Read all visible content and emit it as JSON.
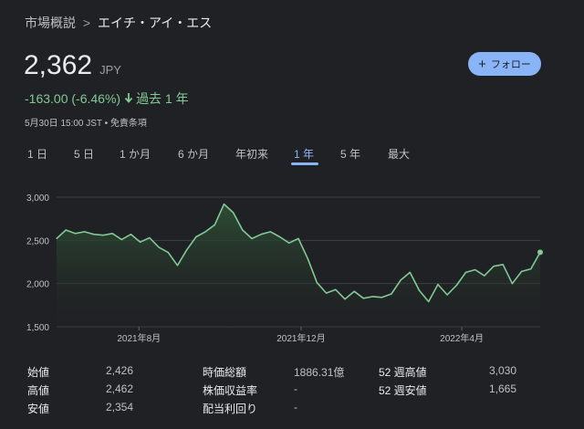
{
  "breadcrumb": {
    "parent": "市場概説",
    "separator": ">",
    "current": "エイチ・アイ・エス"
  },
  "quote": {
    "price": "2,362",
    "currency": "JPY",
    "change": "-163.00 (-6.46%)",
    "change_arrow": "down-arrow-icon",
    "period": "過去 1 年",
    "timestamp": "5月30日 15:00 JST • 免責条項",
    "change_color": "#81c995"
  },
  "follow_button": {
    "icon": "plus-icon",
    "label": "フォロー",
    "color": "#8ab4f8"
  },
  "ranges": {
    "items": [
      "1 日",
      "5 日",
      "1 か月",
      "6 か月",
      "年初来",
      "1 年",
      "5 年",
      "最大"
    ],
    "selected": "1 年"
  },
  "chart_data": {
    "type": "area",
    "y_ticks": [
      "3,000",
      "2,500",
      "2,000",
      "1,500"
    ],
    "y_tick_values": [
      3000,
      2500,
      2000,
      1500
    ],
    "ylim": [
      1500,
      3000
    ],
    "x_tick_labels": [
      "2021年8月",
      "2021年12月",
      "2022年4月"
    ],
    "x_tick_dates": [
      "2021-08-01",
      "2021-12-01",
      "2022-04-01"
    ],
    "xlim": [
      "2021-05-31",
      "2022-05-30"
    ],
    "grid": true,
    "line_color": "#81c995",
    "series": [
      {
        "x": [
          "2021-05-31",
          "2021-06-07",
          "2021-06-14",
          "2021-06-21",
          "2021-06-28",
          "2021-07-05",
          "2021-07-12",
          "2021-07-19",
          "2021-07-26",
          "2021-08-02",
          "2021-08-09",
          "2021-08-16",
          "2021-08-23",
          "2021-08-30",
          "2021-09-06",
          "2021-09-13",
          "2021-09-20",
          "2021-09-27",
          "2021-10-04",
          "2021-10-11",
          "2021-10-18",
          "2021-10-25",
          "2021-11-01",
          "2021-11-08",
          "2021-11-15",
          "2021-11-22",
          "2021-11-29",
          "2021-12-06",
          "2021-12-13",
          "2021-12-20",
          "2021-12-27",
          "2022-01-03",
          "2022-01-10",
          "2022-01-17",
          "2022-01-24",
          "2022-01-31",
          "2022-02-07",
          "2022-02-14",
          "2022-02-21",
          "2022-02-28",
          "2022-03-07",
          "2022-03-14",
          "2022-03-21",
          "2022-03-28",
          "2022-04-04",
          "2022-04-11",
          "2022-04-18",
          "2022-04-25",
          "2022-05-02",
          "2022-05-09",
          "2022-05-16",
          "2022-05-23",
          "2022-05-30"
        ],
        "values": [
          2520,
          2620,
          2580,
          2600,
          2570,
          2560,
          2580,
          2510,
          2570,
          2480,
          2530,
          2420,
          2360,
          2210,
          2390,
          2540,
          2600,
          2680,
          2920,
          2820,
          2620,
          2520,
          2570,
          2600,
          2540,
          2470,
          2520,
          2290,
          2010,
          1890,
          1930,
          1820,
          1910,
          1830,
          1850,
          1840,
          1880,
          2040,
          2130,
          1920,
          1790,
          1990,
          1870,
          1980,
          2130,
          2160,
          2090,
          2200,
          2220,
          2000,
          2140,
          2170,
          2362
        ]
      }
    ]
  },
  "stats": [
    {
      "label": "始値",
      "value": "2,426"
    },
    {
      "label": "高値",
      "value": "2,462"
    },
    {
      "label": "安値",
      "value": "2,354"
    },
    {
      "label": "時価総額",
      "value": "1886.31億"
    },
    {
      "label": "株価収益率",
      "value": "-"
    },
    {
      "label": "配当利回り",
      "value": "-"
    },
    {
      "label": "52 週高値",
      "value": "3,030"
    },
    {
      "label": "52 週安値",
      "value": "1,665"
    }
  ]
}
